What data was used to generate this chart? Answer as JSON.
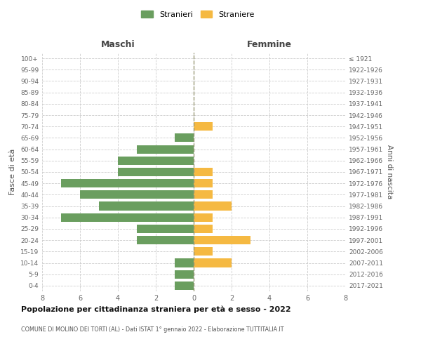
{
  "age_groups": [
    "100+",
    "95-99",
    "90-94",
    "85-89",
    "80-84",
    "75-79",
    "70-74",
    "65-69",
    "60-64",
    "55-59",
    "50-54",
    "45-49",
    "40-44",
    "35-39",
    "30-34",
    "25-29",
    "20-24",
    "15-19",
    "10-14",
    "5-9",
    "0-4"
  ],
  "birth_years": [
    "≤ 1921",
    "1922-1926",
    "1927-1931",
    "1932-1936",
    "1937-1941",
    "1942-1946",
    "1947-1951",
    "1952-1956",
    "1957-1961",
    "1962-1966",
    "1967-1971",
    "1972-1976",
    "1977-1981",
    "1982-1986",
    "1987-1991",
    "1992-1996",
    "1997-2001",
    "2002-2006",
    "2007-2011",
    "2012-2016",
    "2017-2021"
  ],
  "males": [
    0,
    0,
    0,
    0,
    0,
    0,
    0,
    1,
    3,
    4,
    4,
    7,
    6,
    5,
    7,
    3,
    3,
    0,
    1,
    1,
    1
  ],
  "females": [
    0,
    0,
    0,
    0,
    0,
    0,
    1,
    0,
    0,
    0,
    1,
    1,
    1,
    2,
    1,
    1,
    3,
    1,
    2,
    0,
    0
  ],
  "male_color": "#6a9e5f",
  "female_color": "#f5b942",
  "xlim": 8,
  "title": "Popolazione per cittadinanza straniera per età e sesso - 2022",
  "subtitle": "COMUNE DI MOLINO DEI TORTI (AL) - Dati ISTAT 1° gennaio 2022 - Elaborazione TUTTITALIA.IT",
  "left_label": "Maschi",
  "right_label": "Femmine",
  "ylabel_left": "Fasce di età",
  "ylabel_right": "Anni di nascita",
  "legend_male": "Stranieri",
  "legend_female": "Straniere",
  "background_color": "#ffffff",
  "grid_color": "#cccccc",
  "bar_height": 0.75
}
